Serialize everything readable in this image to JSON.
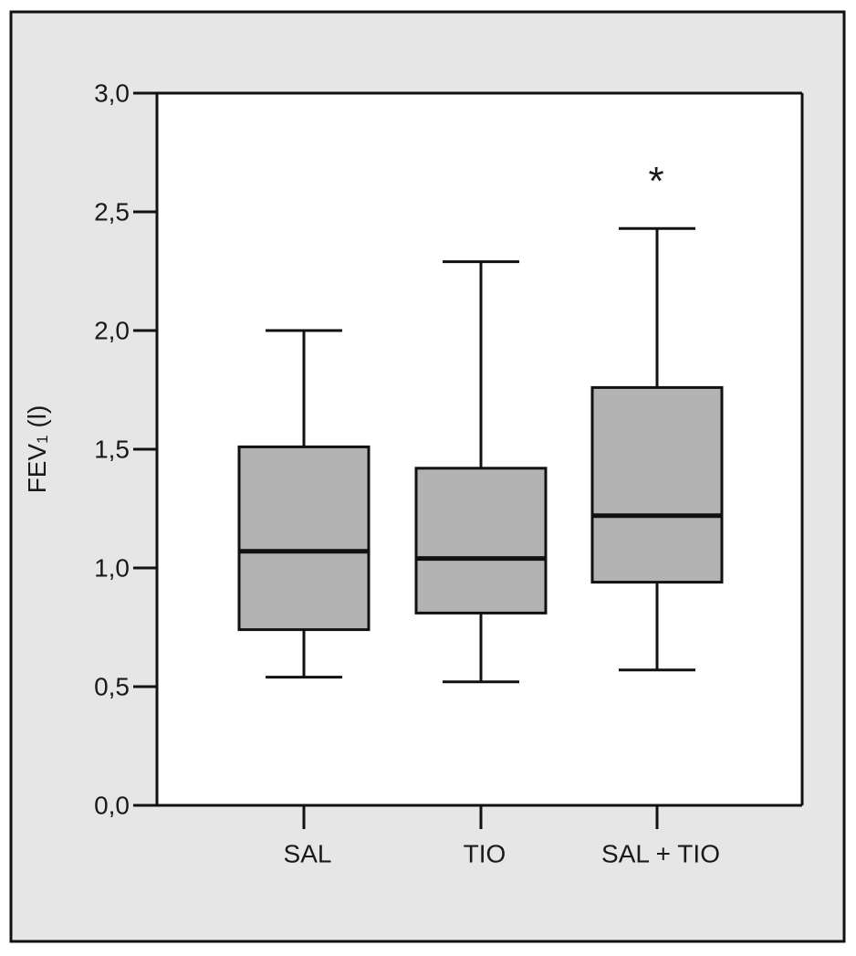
{
  "chart_data": {
    "type": "boxplot",
    "title": "",
    "xlabel": "",
    "ylabel": {
      "main": "FEV",
      "subscript": "1",
      "unit": " (l)"
    },
    "ylim": [
      0,
      3
    ],
    "yticks": [
      0,
      0.5,
      1,
      1.5,
      2,
      2.5,
      3
    ],
    "ytick_labels": [
      "0,0",
      "0,5",
      "1,0",
      "1,5",
      "2,0",
      "2,5",
      "3,0"
    ],
    "grid": false,
    "legend": "none",
    "categories": [
      "SAL",
      "TIO",
      "SAL + TIO"
    ],
    "boxes": [
      {
        "category": "SAL",
        "whisker_low": 0.54,
        "q1": 0.74,
        "median": 1.07,
        "q3": 1.51,
        "whisker_high": 2.0
      },
      {
        "category": "TIO",
        "whisker_low": 0.52,
        "q1": 0.81,
        "median": 1.04,
        "q3": 1.42,
        "whisker_high": 2.29
      },
      {
        "category": "SAL + TIO",
        "whisker_low": 0.57,
        "q1": 0.94,
        "median": 1.22,
        "q3": 1.76,
        "whisker_high": 2.43
      }
    ],
    "annotations": [
      {
        "category": "SAL + TIO",
        "text": "*",
        "y": 2.65
      }
    ],
    "colors": {
      "outer_background": "#e6e6e6",
      "plot_background": "#ffffff",
      "box_fill": "#b3b3b3",
      "stroke": "#111111"
    }
  }
}
